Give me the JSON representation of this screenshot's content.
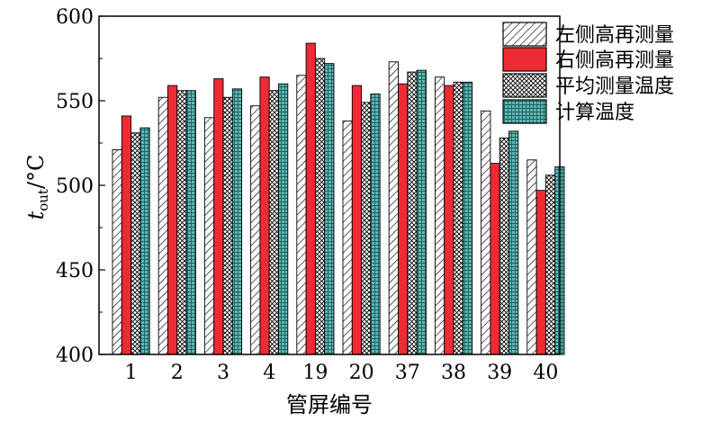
{
  "chart_data": {
    "type": "bar",
    "categories": [
      "1",
      "2",
      "3",
      "4",
      "19",
      "20",
      "37",
      "38",
      "39",
      "40"
    ],
    "series": [
      {
        "name": "左侧高再测量",
        "color": "#ffffff",
        "pattern": "diagonal-hatch",
        "values": [
          521,
          552,
          540,
          547,
          565,
          538,
          573,
          564,
          544,
          515
        ]
      },
      {
        "name": "右侧高再测量",
        "color": "#ee2b34",
        "pattern": "solid",
        "values": [
          541,
          559,
          563,
          564,
          584,
          559,
          560,
          559,
          513,
          497
        ]
      },
      {
        "name": "平均测量温度",
        "color": "#ffffff",
        "pattern": "cross-hatch",
        "values": [
          531,
          556,
          552,
          556,
          575,
          549,
          567,
          561,
          528,
          506
        ]
      },
      {
        "name": "计算温度",
        "color": "#5fb8b5",
        "pattern": "grid",
        "values": [
          534,
          556,
          557,
          560,
          572,
          554,
          568,
          561,
          532,
          511
        ]
      }
    ],
    "xlabel": "管屏编号",
    "ylabel_main": "t",
    "ylabel_sub": "out",
    "ylabel_unit": "/°C",
    "ylim": [
      400,
      600
    ],
    "yticks": [
      400,
      450,
      500,
      550,
      600
    ],
    "grid": false,
    "legend_position": "top-right"
  }
}
